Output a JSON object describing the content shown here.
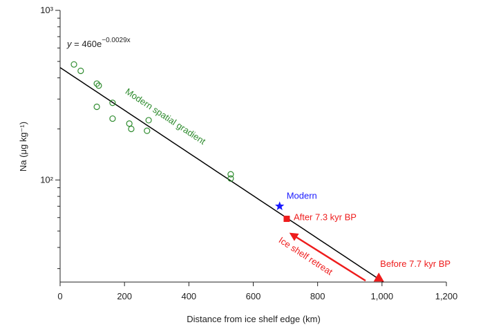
{
  "chart_data": {
    "type": "scatter",
    "xlabel": "Distance from ice shelf edge (km)",
    "ylabel": "Na (μg kg⁻¹)",
    "xlim": [
      0,
      1200
    ],
    "xticks": [
      0,
      200,
      400,
      600,
      800,
      {
        "value": 1000,
        "label": "1,000"
      },
      {
        "value": 1200,
        "label": "1,200"
      }
    ],
    "ylim": [
      25,
      1000
    ],
    "log_y": true,
    "yticks": [
      {
        "value": 100,
        "label": "10²"
      },
      {
        "value": 1000,
        "label": "10³"
      }
    ],
    "yminor_ticks": [
      30,
      40,
      50,
      60,
      70,
      80,
      90,
      200,
      300,
      400,
      500,
      600,
      700,
      800,
      900
    ],
    "equation": {
      "lhs": "y",
      "rhs": " = 460e",
      "exponent": "−0.0029x"
    },
    "fit": {
      "a": 460,
      "rate": 0.0029
    },
    "series": [
      {
        "name": "Modern spatial gradient",
        "color": "#2e8b2e",
        "marker": "circle",
        "x": [
          43,
          64,
          114,
          120,
          114,
          163,
          163,
          215,
          221,
          275,
          270,
          530,
          530
        ],
        "values": [
          480,
          440,
          370,
          360,
          270,
          285,
          230,
          215,
          200,
          225,
          195,
          108,
          102
        ]
      },
      {
        "name": "Modern",
        "color": "#1a1aff",
        "marker": "star",
        "x": [
          682
        ],
        "values": [
          70
        ]
      },
      {
        "name": "After 7.3 kyr BP",
        "color": "#ee1c1c",
        "marker": "square",
        "x": [
          704
        ],
        "values": [
          59
        ]
      },
      {
        "name": "Before 7.7 kyr BP",
        "color": "#ee1c1c",
        "marker": "triangle",
        "x": [
          990
        ],
        "values": [
          26.4
        ]
      }
    ],
    "annotations": [
      "Ice shelf retreat"
    ]
  }
}
